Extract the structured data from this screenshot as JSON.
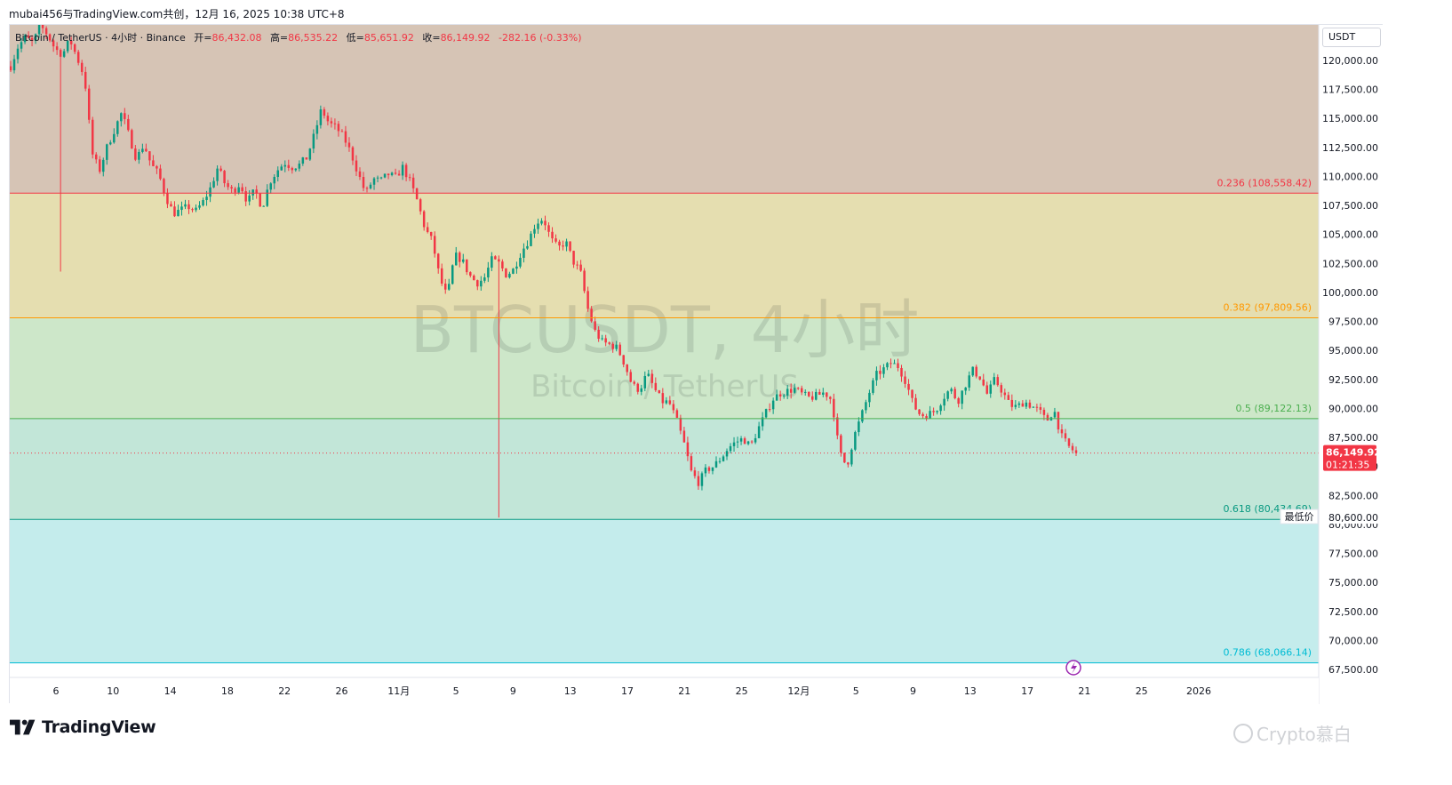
{
  "header": {
    "text": "mubai456与TradingView.com共创，12月 16, 2025 10:38 UTC+8"
  },
  "legend": {
    "symbol": "Bitcoin / TetherUS · 4小时 · Binance",
    "open_label": "开=",
    "open": "86,432.08",
    "high_label": "高=",
    "high": "86,535.22",
    "low_label": "低=",
    "low": "85,651.92",
    "close_label": "收=",
    "close": "86,149.92",
    "change": "-282.16 (-0.33%)"
  },
  "watermark": {
    "symbol": "BTCUSDT, 4小时",
    "description": "Bitcoin / TetherUS"
  },
  "currency": "USDT",
  "price_badge": {
    "price": "86,149.92",
    "countdown": "01:21:35"
  },
  "low_badge": {
    "label": "最低价",
    "price": "80,600.00"
  },
  "footer": {
    "brand": "TradingView",
    "author_watermark": "Crypto慕白"
  },
  "chart_data": {
    "type": "candlestick",
    "symbol": "BTCUSDT",
    "interval": "4小时",
    "exchange": "Binance",
    "ylim": [
      66500,
      123500
    ],
    "yticks": [
      "120,000.00",
      "117,500.00",
      "115,000.00",
      "112,500.00",
      "110,000.00",
      "107,500.00",
      "105,000.00",
      "102,500.00",
      "100,000.00",
      "97,500.00",
      "95,000.00",
      "92,500.00",
      "90,000.00",
      "87,500.00",
      "85,000.00",
      "82,500.00",
      "80,000.00",
      "77,500.00",
      "75,000.00",
      "72,500.00",
      "70,000.00",
      "67,500.00"
    ],
    "xticks": [
      "6",
      "10",
      "14",
      "18",
      "22",
      "26",
      "11月",
      "5",
      "9",
      "13",
      "17",
      "21",
      "25",
      "12月",
      "5",
      "9",
      "13",
      "17",
      "21",
      "25",
      "2026"
    ],
    "fibonacci": [
      {
        "ratio": "0.236",
        "price": 108558.42,
        "label": "0.236 (108,558.42)",
        "color": "#f23645",
        "zone_above": "#d6c4b5"
      },
      {
        "ratio": "0.382",
        "price": 97809.56,
        "label": "0.382 (97,809.56)",
        "color": "#ff9800",
        "zone_above": "#e5deb0"
      },
      {
        "ratio": "0.5",
        "price": 89122.13,
        "label": "0.5 (89,122.13)",
        "color": "#4caf50",
        "zone_above": "#cde7c9"
      },
      {
        "ratio": "0.618",
        "price": 80434.69,
        "label": "0.618 (80,434.69)",
        "color": "#089981",
        "zone_above": "#c2e6d8"
      },
      {
        "ratio": "0.786",
        "price": 68066.14,
        "label": "0.786 (68,066.14)",
        "color": "#00bcd4",
        "zone_above": "#c4ecec"
      }
    ],
    "last_price": 86149.92,
    "period_low": 80600.0,
    "colors": {
      "up": "#089981",
      "down": "#f23645"
    },
    "close_path": [
      [
        0,
        119500
      ],
      [
        2,
        121200
      ],
      [
        4,
        122000
      ],
      [
        6,
        121500
      ],
      [
        8,
        123000
      ],
      [
        10,
        122200
      ],
      [
        12,
        121000
      ],
      [
        14,
        120500
      ],
      [
        16,
        121800
      ],
      [
        18,
        120200
      ],
      [
        20,
        118500
      ],
      [
        22,
        112000
      ],
      [
        24,
        110500
      ],
      [
        26,
        112500
      ],
      [
        28,
        114000
      ],
      [
        30,
        115500
      ],
      [
        32,
        113500
      ],
      [
        34,
        111500
      ],
      [
        36,
        112800
      ],
      [
        38,
        111000
      ],
      [
        40,
        110200
      ],
      [
        42,
        108200
      ],
      [
        44,
        106800
      ],
      [
        46,
        107100
      ],
      [
        48,
        107400
      ],
      [
        50,
        107000
      ],
      [
        52,
        107800
      ],
      [
        54,
        109000
      ],
      [
        56,
        110800
      ],
      [
        58,
        109300
      ],
      [
        60,
        108700
      ],
      [
        62,
        109400
      ],
      [
        64,
        107800
      ],
      [
        66,
        108800
      ],
      [
        68,
        107300
      ],
      [
        70,
        109500
      ],
      [
        72,
        110500
      ],
      [
        74,
        111200
      ],
      [
        76,
        110800
      ],
      [
        78,
        111000
      ],
      [
        80,
        111600
      ],
      [
        82,
        113500
      ],
      [
        84,
        115800
      ],
      [
        86,
        114600
      ],
      [
        88,
        114200
      ],
      [
        90,
        113400
      ],
      [
        92,
        112000
      ],
      [
        94,
        110200
      ],
      [
        96,
        108500
      ],
      [
        98,
        109800
      ],
      [
        100,
        109600
      ],
      [
        102,
        110200
      ],
      [
        104,
        109900
      ],
      [
        106,
        110800
      ],
      [
        108,
        109500
      ],
      [
        110,
        107800
      ],
      [
        112,
        105500
      ],
      [
        114,
        104400
      ],
      [
        116,
        101200
      ],
      [
        118,
        99600
      ],
      [
        120,
        103200
      ],
      [
        122,
        102800
      ],
      [
        124,
        101500
      ],
      [
        126,
        100800
      ],
      [
        128,
        101200
      ],
      [
        130,
        102800
      ],
      [
        132,
        102500
      ],
      [
        134,
        101500
      ],
      [
        136,
        102000
      ],
      [
        138,
        103500
      ],
      [
        140,
        104500
      ],
      [
        142,
        106000
      ],
      [
        144,
        106400
      ],
      [
        146,
        104600
      ],
      [
        148,
        103800
      ],
      [
        150,
        104400
      ],
      [
        152,
        102700
      ],
      [
        154,
        101800
      ],
      [
        156,
        98600
      ],
      [
        158,
        96600
      ],
      [
        160,
        95700
      ],
      [
        162,
        95500
      ],
      [
        164,
        95200
      ],
      [
        166,
        93800
      ],
      [
        168,
        92000
      ],
      [
        170,
        91600
      ],
      [
        172,
        93000
      ],
      [
        174,
        91700
      ],
      [
        176,
        90600
      ],
      [
        178,
        90500
      ],
      [
        180,
        89000
      ],
      [
        182,
        87000
      ],
      [
        184,
        84500
      ],
      [
        186,
        83600
      ],
      [
        188,
        84700
      ],
      [
        190,
        85000
      ],
      [
        192,
        85700
      ],
      [
        194,
        86600
      ],
      [
        196,
        87100
      ],
      [
        198,
        87400
      ],
      [
        200,
        86700
      ],
      [
        202,
        88200
      ],
      [
        204,
        89500
      ],
      [
        206,
        90800
      ],
      [
        208,
        91300
      ],
      [
        210,
        91500
      ],
      [
        212,
        91700
      ],
      [
        214,
        91200
      ],
      [
        216,
        90900
      ],
      [
        218,
        91100
      ],
      [
        220,
        91400
      ],
      [
        222,
        90700
      ],
      [
        224,
        86200
      ],
      [
        226,
        85000
      ],
      [
        228,
        87600
      ],
      [
        230,
        89400
      ],
      [
        232,
        91300
      ],
      [
        234,
        92900
      ],
      [
        236,
        93400
      ],
      [
        238,
        93900
      ],
      [
        240,
        93600
      ],
      [
        242,
        92300
      ],
      [
        244,
        90300
      ],
      [
        246,
        89400
      ],
      [
        248,
        89500
      ],
      [
        250,
        89800
      ],
      [
        252,
        90900
      ],
      [
        254,
        91700
      ],
      [
        256,
        90600
      ],
      [
        258,
        92000
      ],
      [
        260,
        93300
      ],
      [
        262,
        92700
      ],
      [
        264,
        91200
      ],
      [
        266,
        92500
      ],
      [
        268,
        91500
      ],
      [
        270,
        90300
      ],
      [
        272,
        90100
      ],
      [
        274,
        90600
      ],
      [
        276,
        90200
      ],
      [
        278,
        89800
      ],
      [
        280,
        88900
      ],
      [
        282,
        89900
      ],
      [
        284,
        87600
      ],
      [
        286,
        86700
      ],
      [
        288,
        86150
      ]
    ]
  }
}
